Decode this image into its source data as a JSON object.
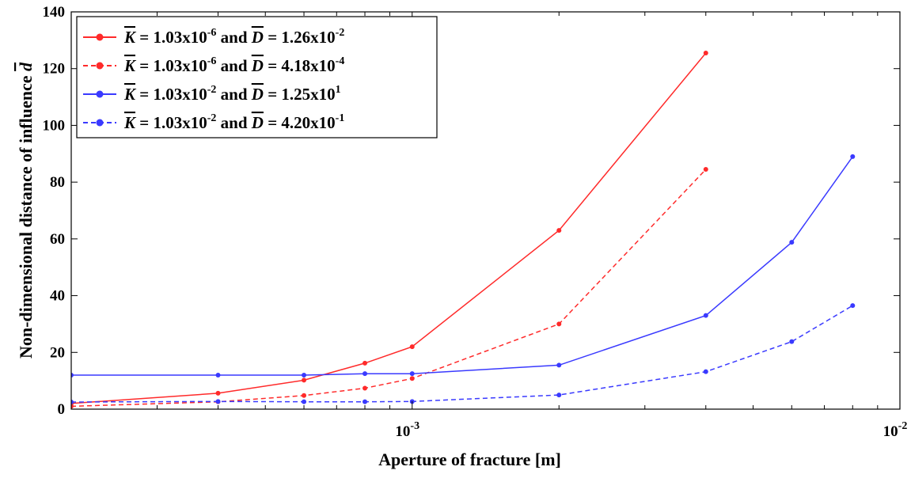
{
  "chart_data": {
    "type": "line",
    "title": "",
    "xlabel": "Aperture of fracture [m]",
    "ylabel": "Non-dimensional distance of influence",
    "ylabel_symbol": "d",
    "x_scale": "log",
    "xlim": [
      0.0002,
      0.01
    ],
    "ylim": [
      0,
      140
    ],
    "yticks": [
      0,
      20,
      40,
      60,
      80,
      100,
      120,
      140
    ],
    "xticks_major": [
      {
        "value": 0.001,
        "base": "10",
        "exp": "-3"
      },
      {
        "value": 0.01,
        "base": "10",
        "exp": "-2"
      }
    ],
    "grid": false,
    "legend_position": "top-left",
    "colors": {
      "red": "#ff2a2a",
      "blue": "#3a3aff"
    },
    "series": [
      {
        "color": "red",
        "style": "solid",
        "legend": {
          "k": "1.03x10",
          "k_exp": "-6",
          "and": "and",
          "d": "1.26x10",
          "d_exp": "-2"
        },
        "points": [
          [
            0.0002,
            2.0
          ],
          [
            0.0004,
            5.6
          ],
          [
            0.0006,
            10.2
          ],
          [
            0.0008,
            16.2
          ],
          [
            0.001,
            22.0
          ],
          [
            0.002,
            63.0
          ],
          [
            0.004,
            125.5
          ]
        ]
      },
      {
        "color": "red",
        "style": "dashed",
        "legend": {
          "k": "1.03x10",
          "k_exp": "-6",
          "and": "and",
          "d": "4.18x10",
          "d_exp": "-4"
        },
        "points": [
          [
            0.0002,
            1.0
          ],
          [
            0.0004,
            2.6
          ],
          [
            0.0006,
            4.8
          ],
          [
            0.0008,
            7.4
          ],
          [
            0.001,
            10.8
          ],
          [
            0.002,
            30.0
          ],
          [
            0.004,
            84.5
          ]
        ]
      },
      {
        "color": "blue",
        "style": "solid",
        "legend": {
          "k": "1.03x10",
          "k_exp": "-2",
          "and": "and",
          "d": "1.25x10",
          "d_exp": "1"
        },
        "points": [
          [
            0.0002,
            12.0
          ],
          [
            0.0004,
            12.0
          ],
          [
            0.0006,
            12.0
          ],
          [
            0.0008,
            12.5
          ],
          [
            0.001,
            12.5
          ],
          [
            0.002,
            15.5
          ],
          [
            0.004,
            33.0
          ],
          [
            0.006,
            58.8
          ],
          [
            0.008,
            89.0
          ]
        ]
      },
      {
        "color": "blue",
        "style": "dashed",
        "legend": {
          "k": "1.03x10",
          "k_exp": "-2",
          "and": "and",
          "d": "4.20x10",
          "d_exp": "-1"
        },
        "points": [
          [
            0.0002,
            2.5
          ],
          [
            0.0004,
            2.7
          ],
          [
            0.0006,
            2.6
          ],
          [
            0.0008,
            2.6
          ],
          [
            0.001,
            2.7
          ],
          [
            0.002,
            5.0
          ],
          [
            0.004,
            13.2
          ],
          [
            0.006,
            23.8
          ],
          [
            0.008,
            36.5
          ]
        ]
      }
    ]
  }
}
